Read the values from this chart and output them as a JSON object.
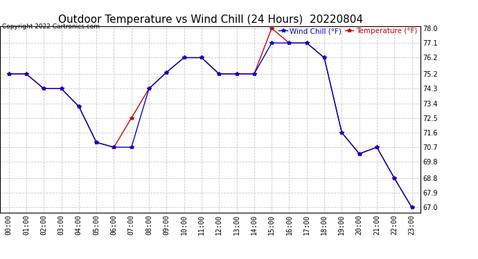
{
  "title": "Outdoor Temperature vs Wind Chill (24 Hours)  20220804",
  "copyright": "Copyright 2022 Cartronics.com",
  "legend_wind_chill": "Wind Chill (°F)",
  "legend_temperature": "Temperature (°F)",
  "x_labels": [
    "00:00",
    "01:00",
    "02:00",
    "03:00",
    "04:00",
    "05:00",
    "06:00",
    "07:00",
    "08:00",
    "09:00",
    "10:00",
    "11:00",
    "12:00",
    "13:00",
    "14:00",
    "15:00",
    "16:00",
    "17:00",
    "18:00",
    "19:00",
    "20:00",
    "21:00",
    "22:00",
    "23:00"
  ],
  "temperature": [
    75.2,
    75.2,
    74.3,
    74.3,
    73.2,
    71.0,
    70.7,
    72.5,
    74.3,
    75.3,
    76.2,
    76.2,
    75.2,
    75.2,
    75.2,
    78.0,
    77.1,
    77.1,
    76.2,
    71.6,
    70.3,
    70.7,
    68.8,
    67.0
  ],
  "wind_chill": [
    75.2,
    75.2,
    74.3,
    74.3,
    73.2,
    71.0,
    70.7,
    70.7,
    74.3,
    75.3,
    76.2,
    76.2,
    75.2,
    75.2,
    75.2,
    77.1,
    77.1,
    77.1,
    76.2,
    71.6,
    70.3,
    70.7,
    68.8,
    67.0
  ],
  "ylim_min": 66.7,
  "ylim_max": 78.15,
  "yticks": [
    67.0,
    67.9,
    68.8,
    69.8,
    70.7,
    71.6,
    72.5,
    73.4,
    74.3,
    75.2,
    76.2,
    77.1,
    78.0
  ],
  "temperature_color": "#cc0000",
  "wind_chill_color": "#0000cc",
  "background_color": "#ffffff",
  "grid_color": "#c8c8c8",
  "title_fontsize": 11,
  "tick_fontsize": 7,
  "legend_fontsize": 7.5
}
